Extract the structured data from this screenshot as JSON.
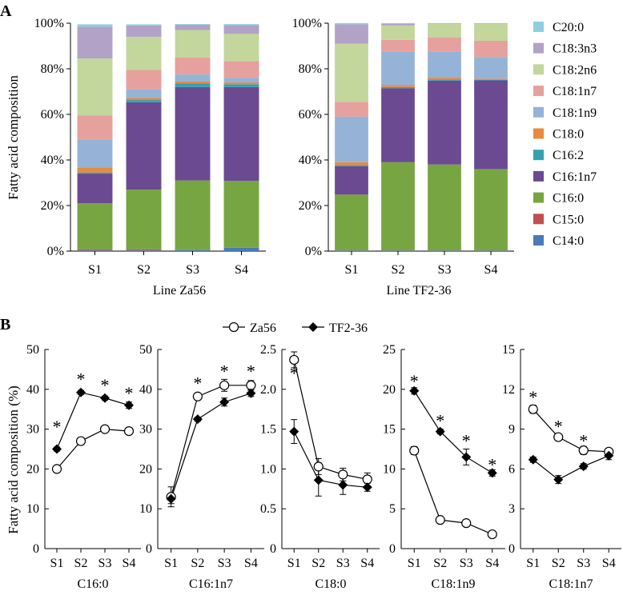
{
  "panels": {
    "a": "A",
    "b": "B"
  },
  "colors": {
    "C20:0": "#8ecfdf",
    "C18:3n3": "#b3a2c7",
    "C18:2n6": "#c3d69b",
    "C18:1n7": "#e6a09d",
    "C18:1n9": "#95b3d7",
    "C18:0": "#e98a3d",
    "C16:2": "#31a2b3",
    "C16:1n7": "#6b4a92",
    "C16:0": "#77a541",
    "C15:0": "#c0504d",
    "C14:0": "#4a7ab8"
  },
  "chart_data": [
    {
      "id": "za56",
      "type": "bar",
      "stacked": true,
      "title": "Line  Za56",
      "ylabel": "Fatty acid composition",
      "ylim": [
        0,
        100
      ],
      "yticks": [
        "0%",
        "20%",
        "40%",
        "60%",
        "80%",
        "100%"
      ],
      "categories": [
        "S1",
        "S2",
        "S3",
        "S4"
      ],
      "series": [
        {
          "name": "C14:0",
          "values": [
            0.3,
            0.3,
            0.4,
            1.5
          ]
        },
        {
          "name": "C15:0",
          "values": [
            0.5,
            0.5,
            0.1,
            0.1
          ]
        },
        {
          "name": "C16:0",
          "values": [
            20.2,
            26.2,
            30.5,
            29.2
          ]
        },
        {
          "name": "C16:1n7",
          "values": [
            13.0,
            38.3,
            41.0,
            41.2
          ]
        },
        {
          "name": "C16:2",
          "values": [
            0.5,
            1.0,
            1.5,
            1.2
          ]
        },
        {
          "name": "C18:0",
          "values": [
            2.2,
            1.0,
            0.9,
            0.8
          ]
        },
        {
          "name": "C18:1n9",
          "values": [
            12.3,
            3.7,
            3.1,
            2.0
          ]
        },
        {
          "name": "C18:1n7",
          "values": [
            10.5,
            8.5,
            7.5,
            7.3
          ]
        },
        {
          "name": "C18:2n6",
          "values": [
            25.0,
            14.5,
            12.0,
            12.0
          ]
        },
        {
          "name": "C18:3n3",
          "values": [
            14.0,
            5.0,
            2.3,
            3.8
          ]
        },
        {
          "name": "C20:0",
          "values": [
            1.0,
            0.5,
            0.3,
            0.5
          ]
        }
      ]
    },
    {
      "id": "tf236",
      "type": "bar",
      "stacked": true,
      "title": "Line  TF2-36",
      "ylim": [
        0,
        100
      ],
      "yticks": [
        "0%",
        "20%",
        "40%",
        "60%",
        "80%",
        "100%"
      ],
      "categories": [
        "S1",
        "S2",
        "S3",
        "S4"
      ],
      "series": [
        {
          "name": "C14:0",
          "values": [
            0.2,
            0.2,
            0.2,
            0.2
          ]
        },
        {
          "name": "C15:0",
          "values": [
            0.1,
            0.1,
            0.1,
            0.1
          ]
        },
        {
          "name": "C16:0",
          "values": [
            24.5,
            38.7,
            37.7,
            35.7
          ]
        },
        {
          "name": "C16:1n7",
          "values": [
            12.5,
            32.5,
            36.8,
            38.9
          ]
        },
        {
          "name": "C16:2",
          "values": [
            0.5,
            0.5,
            0.5,
            0.3
          ]
        },
        {
          "name": "C18:0",
          "values": [
            1.2,
            0.8,
            0.8,
            0.5
          ]
        },
        {
          "name": "C18:1n9",
          "values": [
            20.0,
            14.7,
            11.5,
            9.5
          ]
        },
        {
          "name": "C18:1n7",
          "values": [
            6.5,
            5.2,
            6.2,
            7.1
          ]
        },
        {
          "name": "C18:2n6",
          "values": [
            25.5,
            6.3,
            6.0,
            7.5
          ]
        },
        {
          "name": "C18:3n3",
          "values": [
            8.5,
            0.8,
            0.2,
            0.2
          ]
        },
        {
          "name": "C20:0",
          "values": [
            0.5,
            0.2,
            0.0,
            0.0
          ]
        }
      ]
    },
    {
      "id": "c160",
      "type": "line",
      "xlabel": "C16:0",
      "ylabel": "Fatty acid composition  (%)",
      "ylim": [
        0,
        50
      ],
      "yticks": [
        "0",
        "10",
        "20",
        "30",
        "40",
        "50"
      ],
      "categories": [
        "S1",
        "S2",
        "S3",
        "S4"
      ],
      "series": [
        {
          "name": "Za56",
          "values": [
            20.0,
            27.0,
            30.0,
            29.5
          ],
          "errors": [
            0.5,
            0.5,
            0.5,
            0.5
          ]
        },
        {
          "name": "TF2-36",
          "values": [
            25.0,
            39.2,
            37.8,
            36.0
          ],
          "errors": [
            0.5,
            0.5,
            0.5,
            0.8
          ]
        }
      ],
      "annotations": [
        {
          "x": "S1",
          "y": 31.5,
          "text": "*"
        },
        {
          "x": "S2",
          "y": 43.5,
          "text": "*"
        },
        {
          "x": "S3",
          "y": 42.0,
          "text": "*"
        },
        {
          "x": "S4",
          "y": 40.0,
          "text": "*"
        }
      ]
    },
    {
      "id": "c161",
      "type": "line",
      "xlabel": "C16:1n7",
      "ylim": [
        0,
        50
      ],
      "yticks": [
        "0",
        "10",
        "20",
        "30",
        "40",
        "50"
      ],
      "categories": [
        "S1",
        "S2",
        "S3",
        "S4"
      ],
      "series": [
        {
          "name": "Za56",
          "values": [
            13.0,
            38.2,
            41.0,
            41.0
          ],
          "errors": [
            2.5,
            0.8,
            1.5,
            1.2
          ]
        },
        {
          "name": "TF2-36",
          "values": [
            12.5,
            32.5,
            36.8,
            39.0
          ],
          "errors": [
            1.2,
            0.5,
            1.0,
            0.8
          ]
        }
      ],
      "annotations": [
        {
          "x": "S2",
          "y": 42.5,
          "text": "*"
        },
        {
          "x": "S3",
          "y": 45.5,
          "text": "*"
        },
        {
          "x": "S4",
          "y": 45.5,
          "text": "*"
        }
      ]
    },
    {
      "id": "c180",
      "type": "line",
      "xlabel": "C18:0",
      "ylim": [
        0,
        2.5
      ],
      "yticks": [
        "0",
        "0.5",
        "1.0",
        "1.5",
        "2.0",
        "2.5"
      ],
      "categories": [
        "S1",
        "S2",
        "S3",
        "S4"
      ],
      "series": [
        {
          "name": "Za56",
          "values": [
            2.37,
            1.03,
            0.93,
            0.87
          ],
          "errors": [
            0.1,
            0.1,
            0.08,
            0.08
          ]
        },
        {
          "name": "TF2-36",
          "values": [
            1.47,
            0.86,
            0.8,
            0.77
          ],
          "errors": [
            0.15,
            0.2,
            0.12,
            0.05
          ]
        }
      ],
      "annotations": [
        {
          "x": "S1",
          "y": 2.25,
          "text": "*"
        }
      ]
    },
    {
      "id": "c181n9",
      "type": "line",
      "xlabel": "C18:1n9",
      "ylim": [
        0,
        25
      ],
      "yticks": [
        "0",
        "5",
        "10",
        "15",
        "20",
        "25"
      ],
      "categories": [
        "S1",
        "S2",
        "S3",
        "S4"
      ],
      "series": [
        {
          "name": "Za56",
          "values": [
            12.3,
            3.6,
            3.2,
            1.8
          ],
          "errors": [
            0.5,
            0.2,
            0.2,
            0.2
          ]
        },
        {
          "name": "TF2-36",
          "values": [
            19.8,
            14.7,
            11.5,
            9.5
          ],
          "errors": [
            0.4,
            0.3,
            1.0,
            0.4
          ]
        }
      ],
      "annotations": [
        {
          "x": "S1",
          "y": 21.5,
          "text": "*"
        },
        {
          "x": "S2",
          "y": 16.5,
          "text": "*"
        },
        {
          "x": "S3",
          "y": 14.0,
          "text": "*"
        },
        {
          "x": "S4",
          "y": 11.0,
          "text": "*"
        }
      ]
    },
    {
      "id": "c181n7",
      "type": "line",
      "xlabel": "C18:1n7",
      "ylim": [
        0,
        15
      ],
      "yticks": [
        "0",
        "3",
        "6",
        "9",
        "12",
        "15"
      ],
      "categories": [
        "S1",
        "S2",
        "S3",
        "S4"
      ],
      "series": [
        {
          "name": "Za56",
          "values": [
            10.5,
            8.4,
            7.4,
            7.3
          ],
          "errors": [
            0.3,
            0.2,
            0.3,
            0.2
          ]
        },
        {
          "name": "TF2-36",
          "values": [
            6.7,
            5.2,
            6.2,
            7.0
          ],
          "errors": [
            0.2,
            0.3,
            0.2,
            0.3
          ]
        }
      ],
      "annotations": [
        {
          "x": "S1",
          "y": 11.7,
          "text": "*"
        },
        {
          "x": "S2",
          "y": 9.5,
          "text": "*"
        },
        {
          "x": "S3",
          "y": 8.4,
          "text": "*"
        }
      ]
    }
  ],
  "legend_top": [
    {
      "name": "C20:0"
    },
    {
      "name": "C18:3n3"
    },
    {
      "name": "C18:2n6"
    },
    {
      "name": "C18:1n7"
    },
    {
      "name": "C18:1n9"
    },
    {
      "name": "C18:0"
    },
    {
      "name": "C16:2"
    },
    {
      "name": "C16:1n7"
    },
    {
      "name": "C16:0"
    },
    {
      "name": "C15:0"
    },
    {
      "name": "C14:0"
    }
  ],
  "legend_bottom": [
    {
      "name": "Za56",
      "marker": "open-circle"
    },
    {
      "name": "TF2-36",
      "marker": "filled-diamond"
    }
  ]
}
